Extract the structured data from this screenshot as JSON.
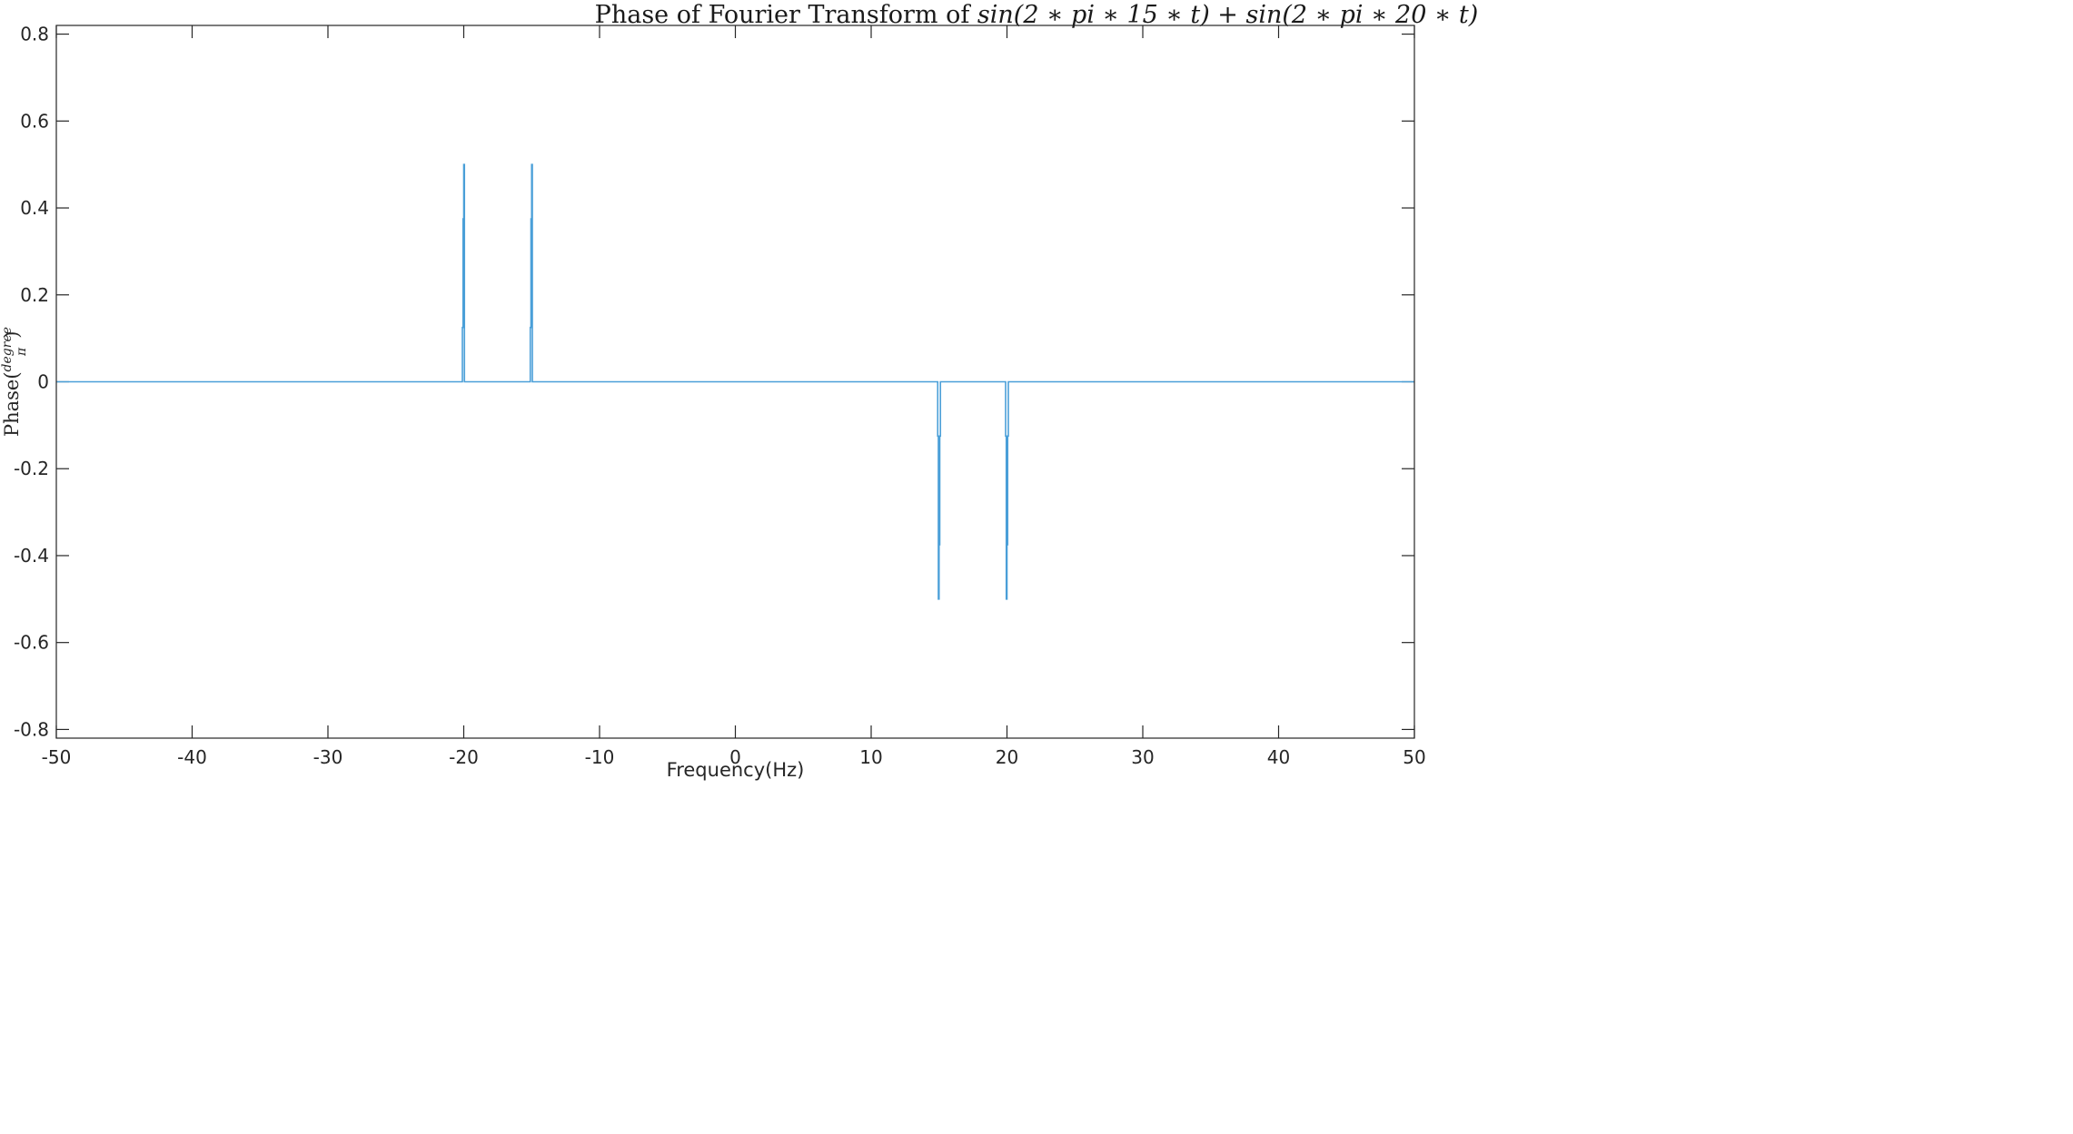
{
  "chart_data": {
    "type": "line",
    "title": "Phase of Fourier Transform of sin(2*pi*15*t)+sin(2*pi*20*t)",
    "title_parts": {
      "prefix": "Phase of Fourier Transform of ",
      "math": "sin(2 ∗ pi ∗ 15 ∗ t) + sin(2 ∗ pi ∗ 20 ∗ t)"
    },
    "xlabel": "Frequency(Hz)",
    "ylabel": "Phase(degree/π)",
    "ylabel_parts": {
      "base": "Phase(",
      "num": "degree",
      "den": "π",
      "close": ")"
    },
    "xlim": [
      -50,
      50
    ],
    "ylim": [
      -0.82,
      0.82
    ],
    "xticks": [
      "-50",
      "-40",
      "-30",
      "-20",
      "-10",
      "0",
      "10",
      "20",
      "30",
      "40",
      "50"
    ],
    "xtick_values": [
      -50,
      -40,
      -30,
      -20,
      -10,
      0,
      10,
      20,
      30,
      40,
      50
    ],
    "yticks": [
      "-0.8",
      "-0.6",
      "-0.4",
      "-0.2",
      "0",
      "0.2",
      "0.4",
      "0.6",
      "0.8"
    ],
    "ytick_values": [
      -0.8,
      -0.6,
      -0.4,
      -0.2,
      0,
      0.2,
      0.4,
      0.6,
      0.8
    ],
    "grid": false,
    "line_color": "#4a9fd8",
    "axis_color": "#262626",
    "series": [
      {
        "x": [
          -50,
          -20.1,
          -20.1,
          -20.05,
          -20.05,
          -20.0,
          -20.0,
          -19.95,
          -19.95,
          -19.9,
          -19.9,
          -15.1,
          -15.1,
          -15.05,
          -15.05,
          -15.0,
          -15.0,
          -14.95,
          -14.95,
          -14.9,
          -14.9,
          14.9,
          14.9,
          14.95,
          14.95,
          15.0,
          15.0,
          15.05,
          15.05,
          15.1,
          15.1,
          19.9,
          19.9,
          19.95,
          19.95,
          20.0,
          20.0,
          20.05,
          20.05,
          20.1,
          20.1,
          50
        ],
        "y": [
          0,
          0,
          0.125,
          0.125,
          0.375,
          0.375,
          0.5,
          0.5,
          0,
          0,
          0,
          0,
          0.125,
          0.125,
          0.375,
          0.375,
          0.5,
          0.5,
          0,
          0,
          0,
          0,
          -0.125,
          -0.125,
          -0.5,
          -0.5,
          -0.375,
          -0.375,
          -0.125,
          -0.125,
          0,
          0,
          -0.125,
          -0.125,
          -0.5,
          -0.5,
          -0.375,
          -0.375,
          -0.125,
          -0.125,
          0,
          0
        ]
      }
    ]
  }
}
